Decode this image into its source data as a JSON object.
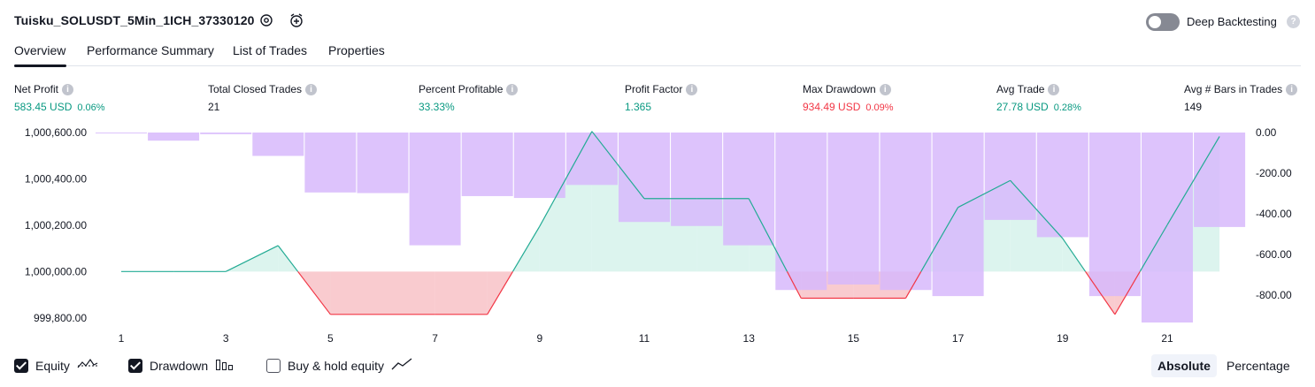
{
  "header": {
    "strategy_title": "Tuisku_SOLUSDT_5Min_1ICH_37330120",
    "deep_backtesting_label": "Deep Backtesting",
    "deep_backtesting_enabled": false
  },
  "tabs": [
    {
      "label": "Overview",
      "active": true
    },
    {
      "label": "Performance Summary",
      "active": false
    },
    {
      "label": "List of Trades",
      "active": false
    },
    {
      "label": "Properties",
      "active": false
    }
  ],
  "metrics": {
    "net_profit": {
      "label": "Net Profit",
      "value": "583.45 USD",
      "pct": "0.06%"
    },
    "total_closed_trades": {
      "label": "Total Closed Trades",
      "value": "21"
    },
    "percent_profitable": {
      "label": "Percent Profitable",
      "value": "33.33%"
    },
    "profit_factor": {
      "label": "Profit Factor",
      "value": "1.365"
    },
    "max_drawdown": {
      "label": "Max Drawdown",
      "value": "934.49 USD",
      "pct": "0.09%"
    },
    "avg_trade": {
      "label": "Avg Trade",
      "value": "27.78 USD",
      "pct": "0.28%"
    },
    "avg_bars": {
      "label": "Avg # Bars in Trades",
      "value": "149"
    }
  },
  "colors": {
    "positive": "#089981",
    "negative": "#f23645",
    "equity_line": "#22ab94",
    "equity_line_dd": "#f23645",
    "equity_fill": "#d6f2eb",
    "drawdown_fill": "#f7b5ba",
    "drawdown_bar": "#d7b8fb"
  },
  "legend": {
    "equity_label": "Equity",
    "drawdown_label": "Drawdown",
    "buy_hold_label": "Buy & hold equity",
    "equity_checked": true,
    "drawdown_checked": true,
    "buy_hold_checked": false
  },
  "mode": {
    "absolute_label": "Absolute",
    "percentage_label": "Percentage",
    "selected": "Absolute"
  },
  "chart_data": {
    "type": "line",
    "x_ticks": [
      1,
      3,
      5,
      7,
      9,
      11,
      13,
      15,
      17,
      19,
      21
    ],
    "left_axis": {
      "ticks": [
        "1,000,600.00",
        "1,000,400.00",
        "1,000,200.00",
        "1,000,000.00",
        "999,800.00"
      ],
      "tick_values": [
        1000600,
        1000400,
        1000200,
        1000000,
        999800
      ],
      "ylim": [
        999780,
        1000600
      ]
    },
    "right_axis": {
      "ticks": [
        "0.00",
        "-200.00",
        "-400.00",
        "-600.00",
        "-800.00"
      ],
      "tick_values": [
        0,
        -200,
        -400,
        -600,
        -800
      ],
      "ylim": [
        -935,
        0
      ]
    },
    "series": [
      {
        "name": "Equity",
        "x": [
          1,
          2,
          3,
          4,
          5,
          6,
          7,
          8,
          9,
          10,
          11,
          12,
          13,
          14,
          15,
          16,
          17,
          18,
          19,
          20,
          21,
          22
        ],
        "values": [
          1000000,
          1000000,
          1000000,
          1000112,
          999815,
          999815,
          999815,
          999815,
          1000195,
          1000605,
          1000315,
          1000315,
          1000315,
          999885,
          999885,
          999885,
          1000277,
          1000393,
          1000143,
          999815,
          1000201,
          1000583
        ]
      },
      {
        "name": "Drawdown",
        "x": [
          1,
          2,
          3,
          4,
          5,
          6,
          7,
          8,
          9,
          10,
          11,
          12,
          13,
          14,
          15,
          16,
          17,
          18,
          19,
          20,
          21,
          22
        ],
        "values": [
          -3,
          -40,
          -8,
          -115,
          -295,
          -298,
          -555,
          -313,
          -322,
          -258,
          -440,
          -460,
          -555,
          -775,
          -748,
          -775,
          -805,
          -430,
          -515,
          -805,
          -935,
          -465
        ]
      }
    ]
  }
}
